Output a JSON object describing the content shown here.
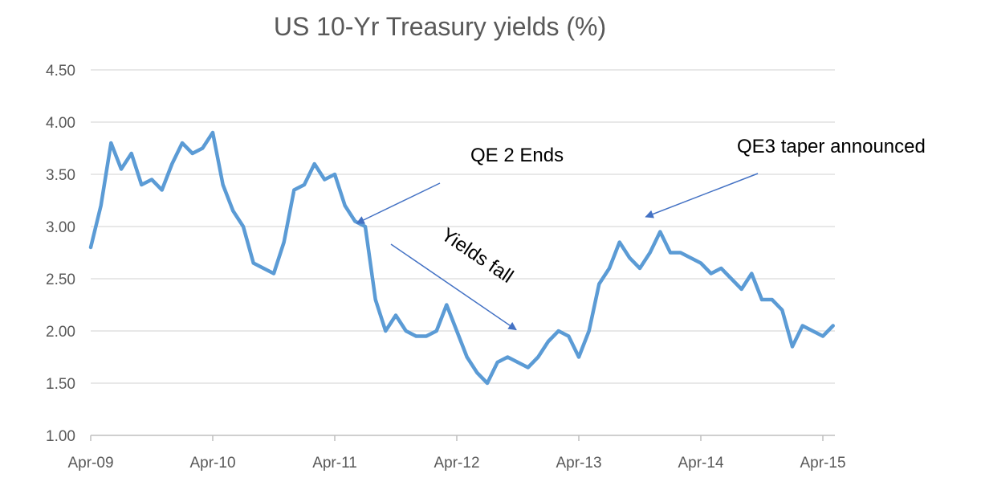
{
  "chart_data": {
    "type": "line",
    "title": "US 10-Yr Treasury yields (%)",
    "xlabel": "",
    "ylabel": "",
    "ylim": [
      1.0,
      4.5
    ],
    "y_ticks": [
      "4.50",
      "4.00",
      "3.50",
      "3.00",
      "2.50",
      "2.00",
      "1.50",
      "1.00"
    ],
    "x_ticks": [
      "Apr-09",
      "Apr-10",
      "Apr-11",
      "Apr-12",
      "Apr-13",
      "Apr-14",
      "Apr-15"
    ],
    "x_range": [
      "2009-04",
      "2015-05"
    ],
    "grid": "horizontal",
    "legend": "none",
    "line_color": "#5B9BD5",
    "series": [
      {
        "x": [
          "2009-04",
          "2009-05",
          "2009-06",
          "2009-07",
          "2009-08",
          "2009-09",
          "2009-10",
          "2009-11",
          "2009-12",
          "2010-01",
          "2010-02",
          "2010-03",
          "2010-04",
          "2010-05",
          "2010-06",
          "2010-07",
          "2010-08",
          "2010-09",
          "2010-10",
          "2010-11",
          "2010-12",
          "2011-01",
          "2011-02",
          "2011-03",
          "2011-04",
          "2011-05",
          "2011-06",
          "2011-07",
          "2011-08",
          "2011-09",
          "2011-10",
          "2011-11",
          "2011-12",
          "2012-01",
          "2012-02",
          "2012-03",
          "2012-04",
          "2012-05",
          "2012-06",
          "2012-07",
          "2012-08",
          "2012-09",
          "2012-10",
          "2012-11",
          "2012-12",
          "2013-01",
          "2013-02",
          "2013-03",
          "2013-04",
          "2013-05",
          "2013-06",
          "2013-07",
          "2013-08",
          "2013-09",
          "2013-10",
          "2013-11",
          "2013-12",
          "2014-01",
          "2014-02",
          "2014-03",
          "2014-04",
          "2014-05",
          "2014-06",
          "2014-07",
          "2014-08",
          "2014-09",
          "2014-10",
          "2014-11",
          "2014-12",
          "2015-01",
          "2015-02",
          "2015-03",
          "2015-04",
          "2015-05"
        ],
        "values": [
          2.8,
          3.2,
          3.8,
          3.55,
          3.7,
          3.4,
          3.45,
          3.35,
          3.6,
          3.8,
          3.7,
          3.75,
          3.9,
          3.4,
          3.15,
          3.0,
          2.65,
          2.6,
          2.55,
          2.85,
          3.35,
          3.4,
          3.6,
          3.45,
          3.5,
          3.2,
          3.05,
          3.0,
          2.3,
          2.0,
          2.15,
          2.0,
          1.95,
          1.95,
          2.0,
          2.25,
          2.0,
          1.75,
          1.6,
          1.5,
          1.7,
          1.75,
          1.7,
          1.65,
          1.75,
          1.9,
          2.0,
          1.95,
          1.75,
          2.0,
          2.45,
          2.6,
          2.85,
          2.7,
          2.6,
          2.75,
          2.95,
          2.75,
          2.75,
          2.7,
          2.65,
          2.55,
          2.6,
          2.5,
          2.4,
          2.55,
          2.3,
          2.3,
          2.2,
          1.85,
          2.05,
          2.0,
          1.95,
          2.05
        ]
      }
    ],
    "annotations": [
      {
        "text": "QE 2 Ends",
        "x": "2011-06",
        "y": 3.0
      },
      {
        "text": "Yields fall",
        "x": "2012-10",
        "y": 1.95
      },
      {
        "text": "QE3 taper announced",
        "x": "2013-09",
        "y": 3.0
      }
    ],
    "annotation_color": "#4472C4"
  }
}
